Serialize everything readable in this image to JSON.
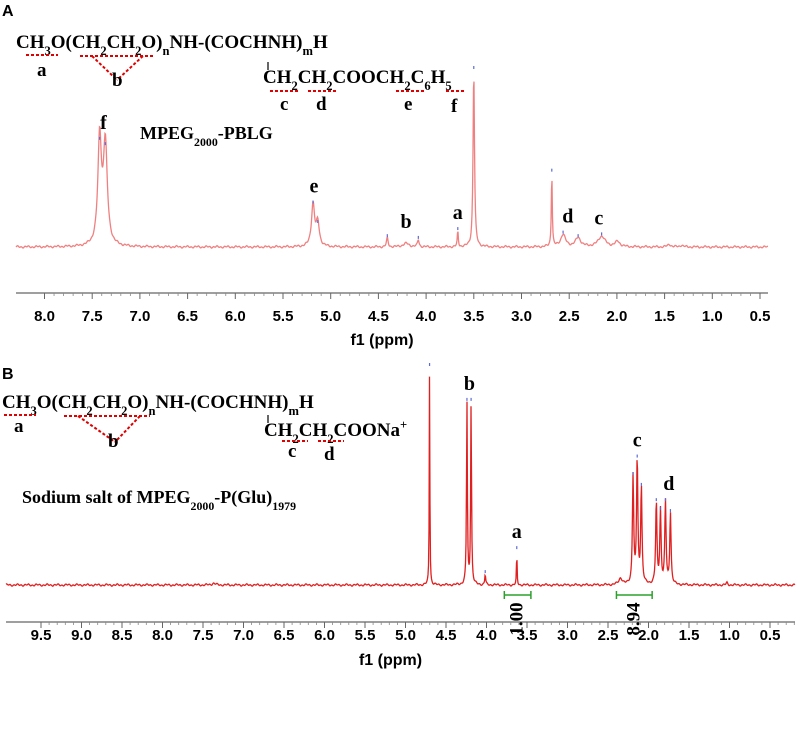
{
  "panels": {
    "A": {
      "letter": "A",
      "formula": {
        "line1": [
          {
            "t": "CH"
          },
          {
            "t": "3",
            "sub": true
          },
          {
            "t": "O(CH"
          },
          {
            "t": "2",
            "sub": true
          },
          {
            "t": "CH"
          },
          {
            "t": "2",
            "sub": true
          },
          {
            "t": "O)"
          },
          {
            "t": "n",
            "sub": true
          },
          {
            "t": "NH-(COCHNH)"
          },
          {
            "t": "m",
            "sub": true
          },
          {
            "t": "H"
          }
        ],
        "line2": [
          {
            "t": "CH"
          },
          {
            "t": "2",
            "sub": true
          },
          {
            "t": "CH"
          },
          {
            "t": "2",
            "sub": true
          },
          {
            "t": "COOCH"
          },
          {
            "t": "2",
            "sub": true
          },
          {
            "t": "C"
          },
          {
            "t": "6",
            "sub": true
          },
          {
            "t": "H"
          },
          {
            "t": "5",
            "sub": true
          }
        ],
        "letters": [
          "a",
          "b",
          "c",
          "d",
          "e",
          "f"
        ]
      },
      "compound": [
        {
          "t": "MPEG"
        },
        {
          "t": "2000",
          "sub": true
        },
        {
          "t": "-PBLG"
        }
      ],
      "peak_labels": [
        {
          "text": "f",
          "ppm": 7.27
        },
        {
          "text": "e",
          "ppm": 5.03
        },
        {
          "text": "b",
          "ppm": 4.05
        },
        {
          "text": "a",
          "ppm": 3.5
        },
        {
          "text": "d",
          "ppm": 2.33
        },
        {
          "text": "c",
          "ppm": 2.0
        }
      ],
      "xlabel": "f1 (ppm)",
      "ticks": [
        "8.0",
        "7.5",
        "7.0",
        "6.5",
        "6.0",
        "5.5",
        "5.0",
        "4.5",
        "4.0",
        "3.5",
        "3.0",
        "2.5",
        "2.0",
        "1.5",
        "1.0",
        "0.5"
      ]
    },
    "B": {
      "letter": "B",
      "formula": {
        "line1": [
          {
            "t": "CH"
          },
          {
            "t": "3",
            "sub": true
          },
          {
            "t": "O(CH"
          },
          {
            "t": "2",
            "sub": true
          },
          {
            "t": "CH"
          },
          {
            "t": "2",
            "sub": true
          },
          {
            "t": "O)"
          },
          {
            "t": "n",
            "sub": true
          },
          {
            "t": "NH-(COCHNH)"
          },
          {
            "t": "m",
            "sub": true
          },
          {
            "t": "H"
          }
        ],
        "line2": [
          {
            "t": "CH"
          },
          {
            "t": "2",
            "sub": true
          },
          {
            "t": "CH"
          },
          {
            "t": "2",
            "sub": true
          },
          {
            "t": "COONa"
          },
          {
            "t": "+",
            "sup": true
          }
        ],
        "letters": [
          "a",
          "b",
          "c",
          "d"
        ]
      },
      "compound": [
        {
          "t": "Sodium salt of MPEG"
        },
        {
          "t": "2000",
          "sub": true
        },
        {
          "t": "-P(Glu)"
        },
        {
          "t": "1979",
          "sub": true
        }
      ],
      "peak_labels": [
        {
          "text": "b",
          "ppm": 4.22
        },
        {
          "text": "a",
          "ppm": 3.65
        },
        {
          "text": "c",
          "ppm": 2.2
        },
        {
          "text": "d",
          "ppm": 1.82
        }
      ],
      "integrals": [
        {
          "value": "1.00",
          "from": 3.8,
          "to": 3.48
        },
        {
          "value": "8.94",
          "from": 2.45,
          "to": 2.02
        }
      ],
      "xlabel": "f1 (ppm)",
      "ticks": [
        "9.5",
        "9.0",
        "8.5",
        "8.0",
        "7.5",
        "7.0",
        "6.5",
        "6.0",
        "5.5",
        "5.0",
        "4.5",
        "4.0",
        "3.5",
        "3.0",
        "2.5",
        "2.0",
        "1.5",
        "1.0",
        "0.5"
      ]
    }
  },
  "chart_data": [
    {
      "type": "line",
      "panel": "A",
      "xlabel": "f1 (ppm)",
      "xlim": [
        8.2,
        0.2
      ],
      "x_reversed": true,
      "color": "#f08080",
      "peaks": [
        {
          "ppm": 7.31,
          "height": 0.6,
          "width": 0.045
        },
        {
          "ppm": 7.25,
          "height": 0.57,
          "width": 0.05
        },
        {
          "ppm": 5.04,
          "height": 0.24,
          "width": 0.04
        },
        {
          "ppm": 4.99,
          "height": 0.13,
          "width": 0.04
        },
        {
          "ppm": 4.25,
          "height": 0.05,
          "width": 0.02
        },
        {
          "ppm": 4.05,
          "height": 0.02,
          "width": 0.08
        },
        {
          "ppm": 3.92,
          "height": 0.04,
          "width": 0.02
        },
        {
          "ppm": 3.5,
          "height": 0.09,
          "width": 0.012
        },
        {
          "ppm": 3.33,
          "height": 1.0,
          "width": 0.018
        },
        {
          "ppm": 2.5,
          "height": 0.42,
          "width": 0.012
        },
        {
          "ppm": 2.38,
          "height": 0.07,
          "width": 0.06
        },
        {
          "ppm": 2.22,
          "height": 0.05,
          "width": 0.07
        },
        {
          "ppm": 1.97,
          "height": 0.06,
          "width": 0.09
        },
        {
          "ppm": 1.8,
          "height": 0.03,
          "width": 0.06
        },
        {
          "ppm": 1.25,
          "height": 0.015,
          "width": 0.04
        },
        {
          "ppm": 1.12,
          "height": 0.01,
          "width": 0.04
        }
      ]
    },
    {
      "type": "line",
      "panel": "B",
      "xlabel": "f1 (ppm)",
      "xlim": [
        9.8,
        0.3
      ],
      "x_reversed": true,
      "color": "#e02020",
      "integrals": [
        {
          "range": [
            3.8,
            3.48
          ],
          "value": 1.0
        },
        {
          "range": [
            2.45,
            2.02
          ],
          "value": 8.94
        }
      ],
      "peaks": [
        {
          "ppm": 7.3,
          "height": 0.008,
          "width": 0.05
        },
        {
          "ppm": 4.7,
          "height": 1.0,
          "width": 0.008
        },
        {
          "ppm": 4.25,
          "height": 0.84,
          "width": 0.012
        },
        {
          "ppm": 4.2,
          "height": 0.84,
          "width": 0.012
        },
        {
          "ppm": 4.03,
          "height": 0.05,
          "width": 0.012
        },
        {
          "ppm": 3.65,
          "height": 0.16,
          "width": 0.008
        },
        {
          "ppm": 2.4,
          "height": 0.03,
          "width": 0.05
        },
        {
          "ppm": 2.25,
          "height": 0.5,
          "width": 0.018
        },
        {
          "ppm": 2.2,
          "height": 0.58,
          "width": 0.018
        },
        {
          "ppm": 2.15,
          "height": 0.45,
          "width": 0.018
        },
        {
          "ppm": 1.97,
          "height": 0.38,
          "width": 0.018
        },
        {
          "ppm": 1.92,
          "height": 0.34,
          "width": 0.018
        },
        {
          "ppm": 1.86,
          "height": 0.38,
          "width": 0.018
        },
        {
          "ppm": 1.8,
          "height": 0.33,
          "width": 0.018
        },
        {
          "ppm": 1.12,
          "height": 0.01,
          "width": 0.02
        }
      ]
    }
  ]
}
